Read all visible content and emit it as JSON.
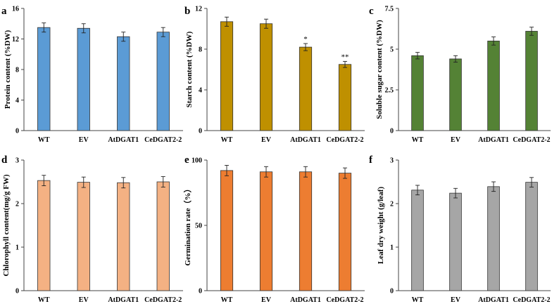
{
  "chart_data": [
    {
      "type": "bar",
      "panel": "a",
      "categories": [
        "WT",
        "EV",
        "AtDGAT1",
        "CeDGAT2-2"
      ],
      "values": [
        13.5,
        13.4,
        12.3,
        12.9
      ],
      "errors": [
        0.6,
        0.6,
        0.6,
        0.6
      ],
      "significance": [
        "",
        "",
        "",
        ""
      ],
      "ylabel": "Protein content (%DW)",
      "ylim": [
        0,
        16
      ],
      "yticks": [
        "0",
        "4",
        "8",
        "12",
        "16"
      ],
      "color": "#5b9bd5"
    },
    {
      "type": "bar",
      "panel": "b",
      "categories": [
        "WT",
        "EV",
        "AtDGAT1",
        "CeDGAT2-2"
      ],
      "values": [
        10.7,
        10.5,
        8.2,
        6.5
      ],
      "errors": [
        0.45,
        0.45,
        0.35,
        0.3
      ],
      "significance": [
        "",
        "",
        "*",
        "**"
      ],
      "ylabel": "Starch content (%DW)",
      "ylim": [
        0,
        12
      ],
      "yticks": [
        "0",
        "4",
        "8",
        "12"
      ],
      "color": "#bf9000"
    },
    {
      "type": "bar",
      "panel": "c",
      "categories": [
        "WT",
        "EV",
        "AtDGAT1",
        "CeDGAT2-2"
      ],
      "values": [
        4.6,
        4.4,
        5.5,
        6.1
      ],
      "errors": [
        0.2,
        0.2,
        0.25,
        0.25
      ],
      "significance": [
        "",
        "",
        "",
        ""
      ],
      "ylabel": "Soluble sugar content (%DW)",
      "ylim": [
        0,
        7.5
      ],
      "yticks": [
        "0",
        "2.5",
        "5",
        "7.5"
      ],
      "color": "#548235"
    },
    {
      "type": "bar",
      "panel": "d",
      "categories": [
        "WT",
        "EV",
        "AtDGAT1",
        "CeDGAT2-2"
      ],
      "values": [
        2.53,
        2.49,
        2.48,
        2.5
      ],
      "errors": [
        0.12,
        0.12,
        0.12,
        0.12
      ],
      "significance": [
        "",
        "",
        "",
        ""
      ],
      "ylabel": "Chlorophyll  content(mg/g FW)",
      "ylim": [
        0,
        3
      ],
      "yticks": [
        "0",
        "1",
        "2",
        "3"
      ],
      "color": "#f4b183"
    },
    {
      "type": "bar",
      "panel": "e",
      "categories": [
        "WT",
        "EV",
        "AtDGAT1",
        "CeDGAT2-2"
      ],
      "values": [
        92,
        91,
        91,
        90
      ],
      "errors": [
        4,
        4,
        4,
        4
      ],
      "significance": [
        "",
        "",
        "",
        ""
      ],
      "ylabel": "Germination   rate（%）",
      "ylim": [
        0,
        100
      ],
      "yticks": [
        "0",
        "50",
        "100"
      ],
      "color": "#ed7d31"
    },
    {
      "type": "bar",
      "panel": "f",
      "categories": [
        "WT",
        "EV",
        "AtDGAT1",
        "CeDGAT2-2"
      ],
      "values": [
        2.31,
        2.24,
        2.39,
        2.49
      ],
      "errors": [
        0.11,
        0.11,
        0.11,
        0.11
      ],
      "significance": [
        "",
        "",
        "",
        ""
      ],
      "ylabel": "Leaf dry weight (g/leaf)",
      "ylim": [
        0,
        3
      ],
      "yticks": [
        "0",
        "1",
        "2",
        "3"
      ],
      "color": "#a6a6a6"
    }
  ]
}
